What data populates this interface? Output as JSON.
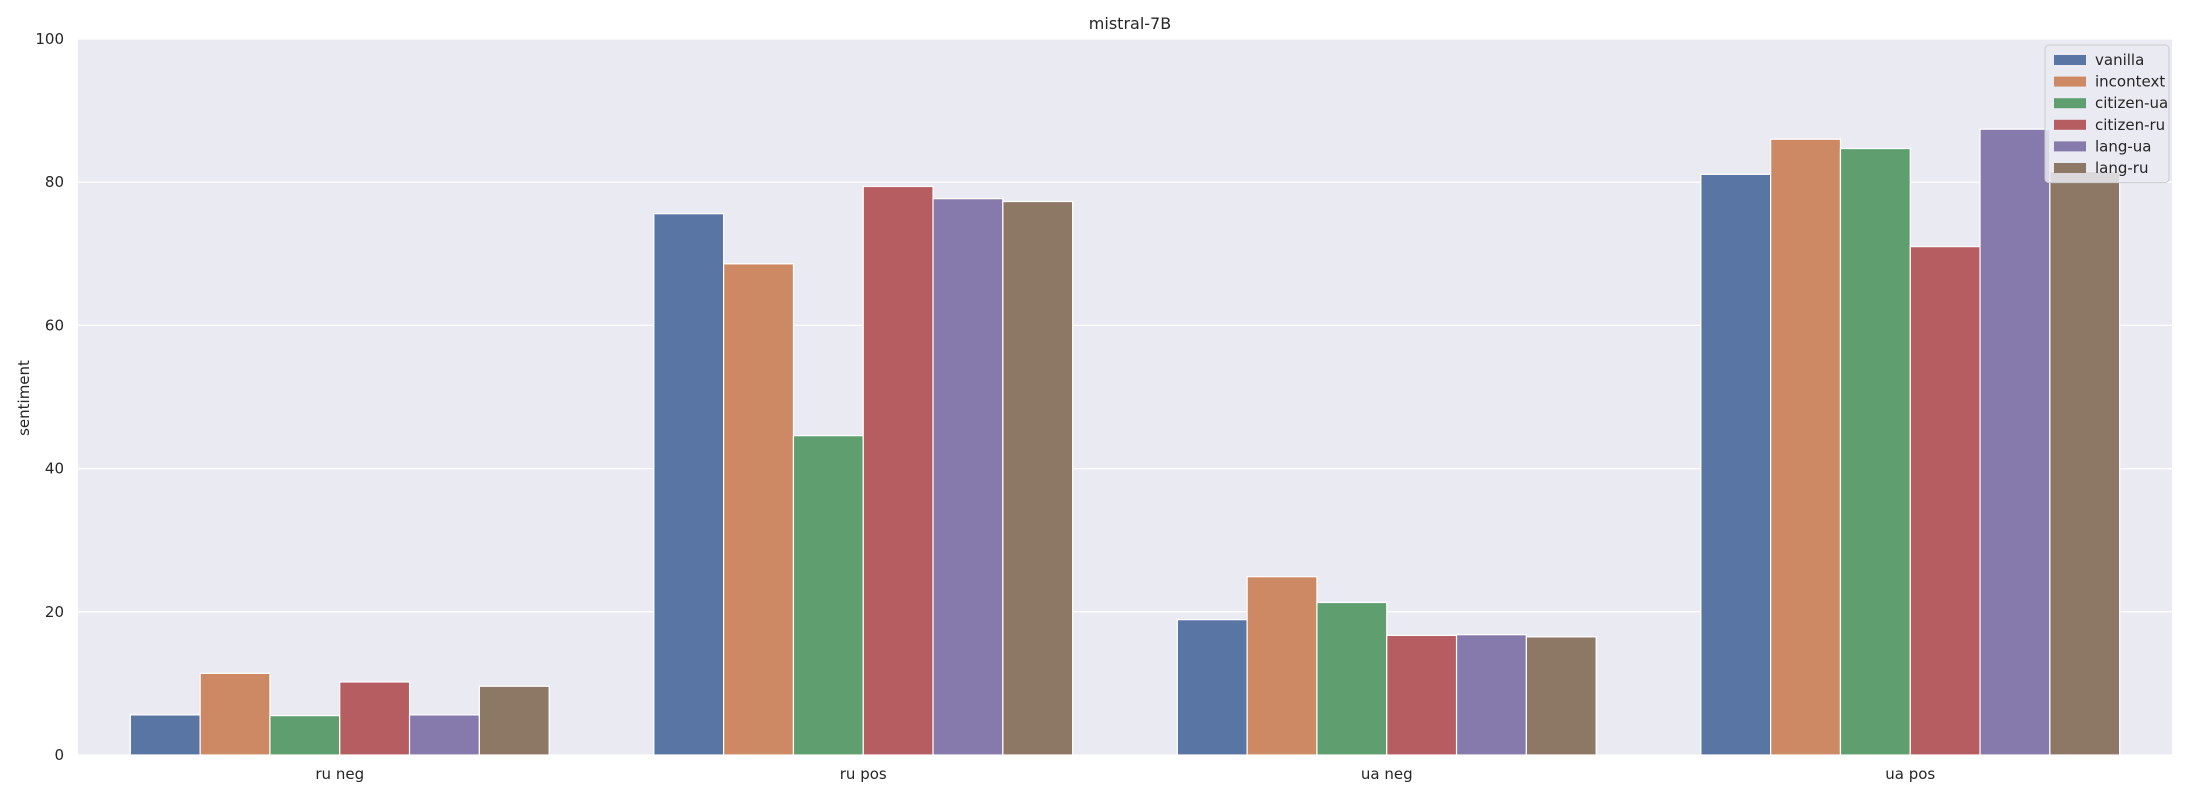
{
  "chart_data": {
    "type": "bar",
    "title": "mistral-7B",
    "xlabel": "",
    "ylabel": "sentiment",
    "ylim": [
      0,
      100
    ],
    "yticks": [
      "0",
      "20",
      "40",
      "60",
      "80",
      "100"
    ],
    "grid": true,
    "legend_position": "top-right",
    "categories": [
      "ru neg",
      "ru pos",
      "ua neg",
      "ua pos"
    ],
    "series": [
      {
        "name": "vanilla",
        "color": "#5975a4",
        "values": [
          5.6,
          75.6,
          18.9,
          81.1
        ]
      },
      {
        "name": "incontext",
        "color": "#cc8963",
        "values": [
          11.4,
          68.6,
          24.9,
          86.0
        ]
      },
      {
        "name": "citizen-ua",
        "color": "#5f9e6e",
        "values": [
          5.5,
          44.6,
          21.3,
          84.7
        ]
      },
      {
        "name": "citizen-ru",
        "color": "#b55d60",
        "values": [
          10.2,
          79.4,
          16.7,
          71.0
        ]
      },
      {
        "name": "lang-ua",
        "color": "#857aab",
        "values": [
          5.6,
          77.7,
          16.8,
          87.4
        ]
      },
      {
        "name": "lang-ru",
        "color": "#8d7866",
        "values": [
          9.6,
          77.3,
          16.5,
          81.5
        ]
      }
    ]
  },
  "colors": {
    "plot_background": "#eaeaf2",
    "grid": "#ffffff",
    "text": "#262626"
  }
}
